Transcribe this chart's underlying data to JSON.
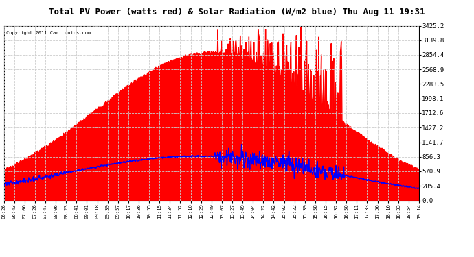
{
  "title": "Total PV Power (watts red) & Solar Radiation (W/m2 blue) Thu Aug 11 19:31",
  "copyright": "Copyright 2011 Cartronics.com",
  "yticks": [
    0.0,
    285.4,
    570.9,
    856.3,
    1141.7,
    1427.2,
    1712.6,
    1998.1,
    2283.5,
    2568.9,
    2854.4,
    3139.8,
    3425.2
  ],
  "xtick_labels": [
    "06:26",
    "06:43",
    "07:06",
    "07:26",
    "07:47",
    "08:06",
    "08:23",
    "08:41",
    "09:01",
    "09:18",
    "09:39",
    "09:57",
    "10:17",
    "10:36",
    "10:55",
    "11:15",
    "11:34",
    "11:52",
    "12:10",
    "12:29",
    "12:49",
    "13:07",
    "13:27",
    "13:49",
    "14:04",
    "14:22",
    "14:42",
    "15:02",
    "15:22",
    "15:39",
    "15:58",
    "16:15",
    "16:32",
    "16:50",
    "17:11",
    "17:33",
    "17:56",
    "18:16",
    "18:33",
    "18:54",
    "19:14"
  ],
  "ymax": 3425.2,
  "ymin": 0.0,
  "plot_bg": "#FFFFFF",
  "grid_color": "#CCCCCC",
  "red_color": "#FF0000",
  "blue_color": "#0000FF",
  "title_bg": "#FFFFFF",
  "fig_bg": "#FFFFFF"
}
